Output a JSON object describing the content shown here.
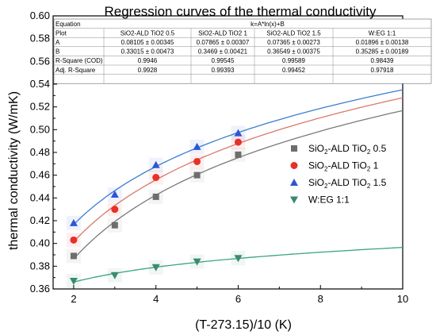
{
  "chart_data": {
    "type": "scatter",
    "title": "Regression curves of the thermal conductivity",
    "xlabel": "(T-273.15)/10 (K)",
    "ylabel": "thermal conductivity (W/mK)",
    "xlim": [
      1.5,
      10
    ],
    "ylim": [
      0.36,
      0.6
    ],
    "xticks": [
      2,
      4,
      6,
      8,
      10
    ],
    "yticks": [
      0.36,
      0.38,
      0.4,
      0.42,
      0.44,
      0.46,
      0.48,
      0.5,
      0.52,
      0.54,
      0.56,
      0.58,
      0.6
    ],
    "legend_position": "right",
    "series": [
      {
        "name": "SiO2-ALD TiO2 0.5",
        "name_sub": "2",
        "name_parts": [
          "SiO",
          "-ALD TiO",
          " 0.5"
        ],
        "marker": "square",
        "color": "#6d6d6d",
        "fit_color": "#7a7a7a",
        "x": [
          2,
          3,
          4,
          5,
          6
        ],
        "y": [
          0.389,
          0.416,
          0.441,
          0.46,
          0.478
        ],
        "fit": {
          "A": 0.08105,
          "B": 0.33015
        }
      },
      {
        "name": "SiO2-ALD TiO2 1",
        "name_parts": [
          "SiO",
          "-ALD TiO",
          " 1"
        ],
        "marker": "circle",
        "color": "#e8302a",
        "fit_color": "#d87a6e",
        "x": [
          2,
          3,
          4,
          5,
          6
        ],
        "y": [
          0.403,
          0.43,
          0.458,
          0.472,
          0.489
        ],
        "fit": {
          "A": 0.07865,
          "B": 0.3469
        }
      },
      {
        "name": "SiO2-ALD TiO2 1.5",
        "name_parts": [
          "SiO",
          "-ALD TiO",
          " 1.5"
        ],
        "marker": "triangle-up",
        "color": "#2f55d4",
        "fit_color": "#3a7fd0",
        "x": [
          2,
          3,
          4,
          5,
          6
        ],
        "y": [
          0.418,
          0.443,
          0.469,
          0.485,
          0.497
        ],
        "fit": {
          "A": 0.07365,
          "B": 0.36549
        }
      },
      {
        "name": "W:EG 1:1",
        "name_parts": [
          "W:EG 1:1"
        ],
        "marker": "triangle-down",
        "color": "#3a8a6e",
        "fit_color": "#3aa388",
        "x": [
          2,
          3,
          4,
          5,
          6
        ],
        "y": [
          0.367,
          0.372,
          0.379,
          0.384,
          0.387
        ],
        "fit": {
          "A": 0.01896,
          "B": 0.35285
        }
      }
    ],
    "table": {
      "equation_label": "Equation",
      "equation": "k=A*ln(x)+B",
      "rows": [
        {
          "label": "Plot",
          "cells": [
            "SiO2-ALD TiO2 0.5",
            "SiO2-ALD TiO2 1",
            "SiO2-ALD TiO2 1.5",
            "W:EG 1:1"
          ]
        },
        {
          "label": "A",
          "cells": [
            "0.08105 ± 0.00345",
            "0.07865 ± 0.00307",
            "0.07365 ± 0.00273",
            "0.01896 ± 0.00138"
          ]
        },
        {
          "label": "B",
          "cells": [
            "0.33015 ± 0.00473",
            "0.3469 ± 0.00421",
            "0.36549 ± 0.00375",
            "0.35285 ± 0.00189"
          ]
        },
        {
          "label": "R-Square (COD)",
          "cells": [
            "0.9946",
            "0.99545",
            "0.99589",
            "0.98439"
          ]
        },
        {
          "label": "Adj. R-Square",
          "cells": [
            "0.9928",
            "0.99393",
            "0.99452",
            "0.97918"
          ]
        }
      ]
    }
  }
}
